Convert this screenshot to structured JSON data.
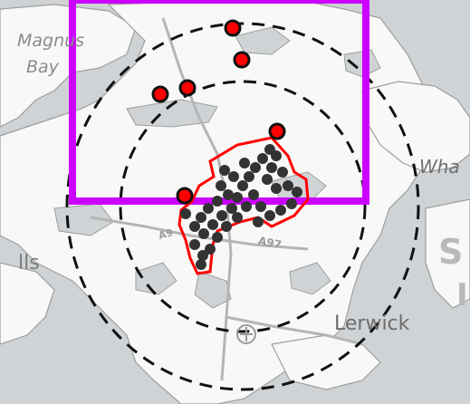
{
  "map": {
    "place_labels": {
      "magnus": "Magnus",
      "bay": "Bay",
      "wha": "Wha",
      "lls": "lls",
      "lerwick": "Lerwick",
      "region_s": "S",
      "region_i": "I"
    },
    "road_labels": {
      "road_a971": "A97",
      "road_a970": "A9"
    }
  },
  "overlay": {
    "selection_box_color": "#cc00ff",
    "cluster_outline_color": "#ff0000",
    "range_ring_color": "#111111",
    "marker_fill": "#ff0000",
    "cluster_dot_color": "#333333"
  }
}
